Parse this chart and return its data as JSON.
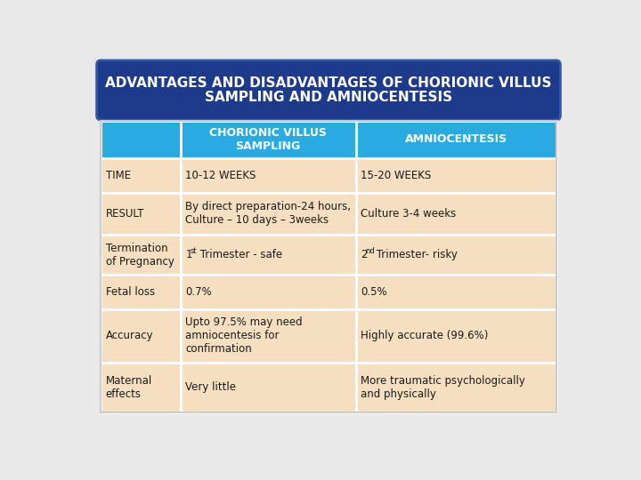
{
  "title_line1": "ADVANTAGES AND DISADVANTAGES OF CHORIONIC VILLUS",
  "title_line2": "SAMPLING AND AMNIOCENTESIS",
  "title_bg": "#1e3a8a",
  "title_color": "#ffffff",
  "header_bg": "#29abe2",
  "header_color": "#ffffff",
  "row_bg": "#f5dfc0",
  "page_bg": "#e8e8e8",
  "border_color": "#ffffff",
  "col0_header": "",
  "col1_header": "CHORIONIC VILLUS\nSAMPLING",
  "col2_header": "AMNIOCENTESIS",
  "rows": [
    {
      "col0": "TIME",
      "col1": "10-12 WEEKS",
      "col2": "15-20 WEEKS"
    },
    {
      "col0": "RESULT",
      "col1": "By direct preparation-24 hours,\nCulture – 10 days – 3weeks",
      "col2": "Culture 3-4 weeks"
    },
    {
      "col0": "Termination\nof Pregnancy",
      "col1_sup": true,
      "col1_base": "1",
      "col1_superscript": "st",
      "col1_rest": " Trimester - safe",
      "col2_sup": true,
      "col2_base": "2",
      "col2_superscript": "nd",
      "col2_rest": " Trimester- risky"
    },
    {
      "col0": "Fetal loss",
      "col1": "0.7%",
      "col2": "0.5%"
    },
    {
      "col0": "Accuracy",
      "col1": "Upto 97.5% may need\namniocentesis for\nconfirmation",
      "col2": "Highly accurate (99.6%)"
    },
    {
      "col0": "Maternal\neffects",
      "col1": "Very little",
      "col2": "More traumatic psychologically\nand physically"
    }
  ]
}
